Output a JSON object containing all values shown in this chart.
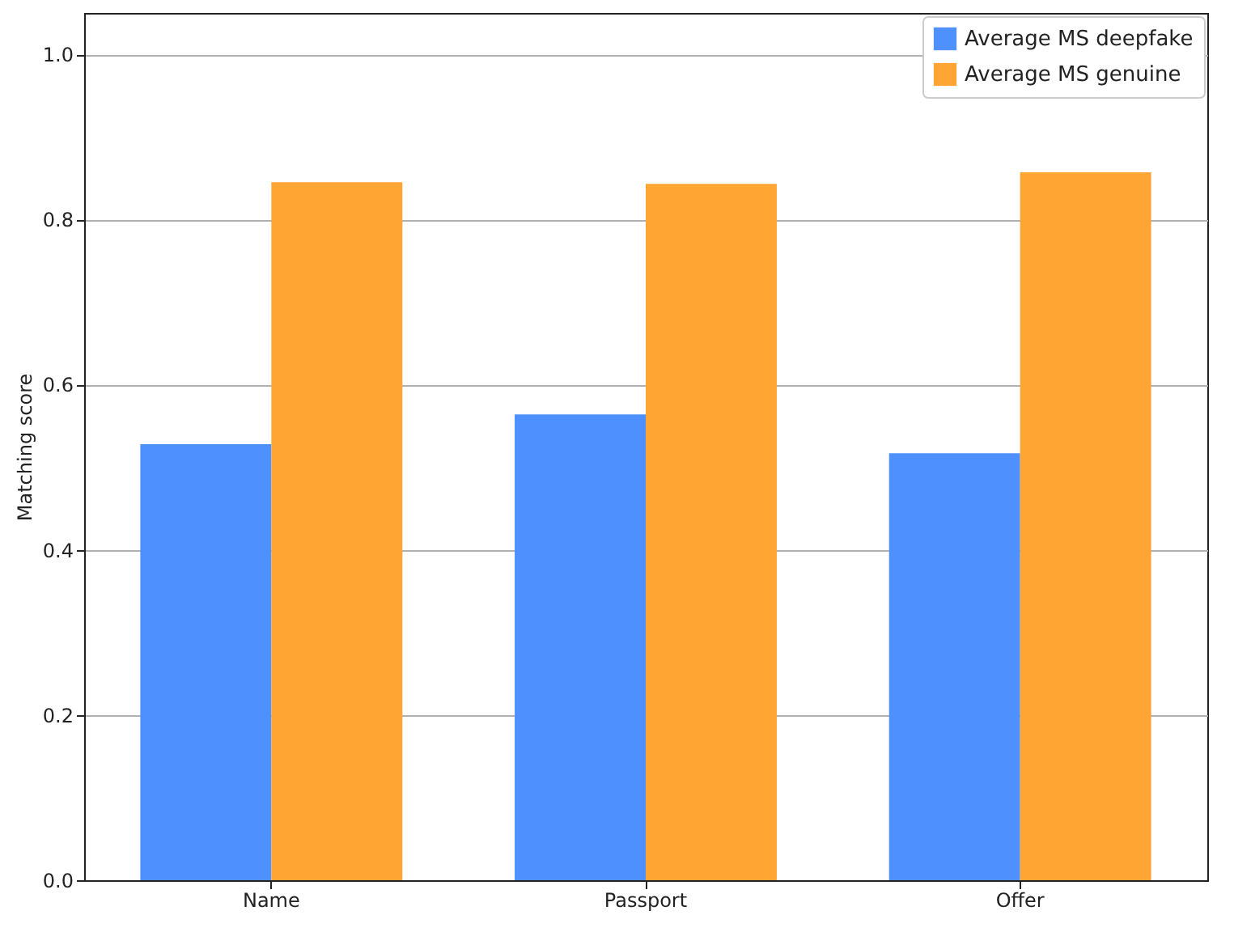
{
  "chart_data": {
    "type": "bar",
    "ylabel": "Matching score",
    "categories": [
      "Name",
      "Passport",
      "Offer"
    ],
    "series": [
      {
        "name": "Average MS deepfake",
        "color": "#4d90fe",
        "values": [
          0.528,
          0.564,
          0.517
        ]
      },
      {
        "name": "Average MS genuine",
        "color": "#ffa533",
        "values": [
          0.845,
          0.843,
          0.857
        ]
      }
    ],
    "ylim": [
      0,
      1.05
    ],
    "yticks": [
      {
        "value": 0,
        "label": "0.0"
      },
      0.2,
      0.4,
      0.6,
      0.8,
      {
        "value": 1,
        "label": "1.0"
      }
    ],
    "grid": "y",
    "legend": "top right"
  }
}
